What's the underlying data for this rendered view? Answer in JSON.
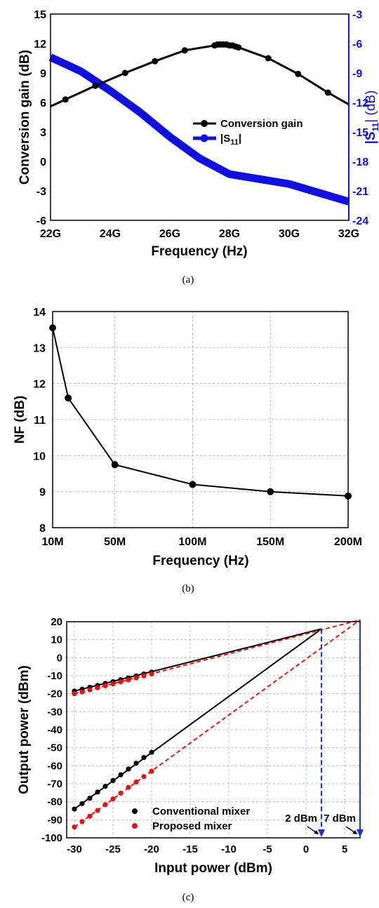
{
  "chart_data": [
    {
      "type": "line",
      "caption": "(a)",
      "xlabel": "Frequency (Hz)",
      "ylabel": "Conversion gain (dB)",
      "y2label_pre": "|S",
      "y2label_sub": "11",
      "y2label_post": "| (dB)",
      "x_ticks": [
        "22G",
        "24G",
        "26G",
        "28G",
        "30G",
        "32G"
      ],
      "xlim": [
        22,
        32
      ],
      "ylim": [
        -6,
        15
      ],
      "y_ticks": [
        "-6",
        "-3",
        "0",
        "3",
        "6",
        "9",
        "12",
        "15"
      ],
      "y2lim": [
        -24,
        -3
      ],
      "y2_ticks": [
        "-24",
        "-21",
        "-18",
        "-15",
        "-12",
        "-9",
        "-6",
        "-3"
      ],
      "legend": [
        "Conversion gain",
        "|S11|"
      ],
      "legend_s11_pre": "|S",
      "legend_s11_sub": "11",
      "legend_s11_post": "|",
      "colors": {
        "gain": "#000000",
        "s11": "#1010dd"
      },
      "series": [
        {
          "name": "Conversion gain",
          "axis": "left",
          "x": [
            22,
            22.5,
            23.5,
            24.5,
            25.5,
            26.5,
            27.5,
            27.6,
            27.7,
            27.8,
            27.9,
            28.0,
            28.1,
            28.2,
            28.3,
            29.3,
            30.3,
            31.3,
            32
          ],
          "y": [
            5.6,
            6.3,
            7.7,
            9.0,
            10.2,
            11.3,
            11.8,
            11.9,
            11.9,
            11.9,
            11.9,
            11.8,
            11.8,
            11.7,
            11.6,
            10.5,
            8.9,
            7.0,
            5.8
          ]
        },
        {
          "name": "|S11|",
          "axis": "right",
          "x": [
            22,
            23,
            24,
            25,
            26,
            27,
            28,
            29,
            30,
            31,
            32
          ],
          "y": [
            -7.4,
            -8.8,
            -10.8,
            -13.0,
            -15.5,
            -17.7,
            -19.3,
            -19.8,
            -20.3,
            -21.2,
            -22.1
          ]
        }
      ]
    },
    {
      "type": "line",
      "caption": "(b)",
      "xlabel": "Frequency (Hz)",
      "ylabel": "NF (dB)",
      "x_ticks": [
        "10M",
        "50M",
        "100M",
        "150M",
        "200M"
      ],
      "x_tick_values": [
        10,
        50,
        100,
        150,
        200
      ],
      "xlim": [
        10,
        200
      ],
      "ylim": [
        8,
        14
      ],
      "y_ticks": [
        "8",
        "9",
        "10",
        "11",
        "12",
        "13",
        "14"
      ],
      "series": [
        {
          "name": "NF",
          "x": [
            10,
            20,
            50,
            100,
            150,
            200
          ],
          "y": [
            13.55,
            11.6,
            9.75,
            9.2,
            9.0,
            8.88
          ]
        }
      ]
    },
    {
      "type": "scatter",
      "caption": "(c)",
      "xlabel": "Input power (dBm)",
      "ylabel": "Output power (dBm)",
      "x_ticks": [
        "-30",
        "-25",
        "-20",
        "-15",
        "-10",
        "-5",
        "0",
        "5"
      ],
      "xlim": [
        -31,
        7
      ],
      "ylim": [
        -100,
        20
      ],
      "y_ticks": [
        "-100",
        "-90",
        "-80",
        "-70",
        "-60",
        "-50",
        "-40",
        "-30",
        "-20",
        "-10",
        "0",
        "10",
        "20"
      ],
      "legend": [
        "Conventional mixer",
        "Proposed mixer"
      ],
      "colors": {
        "conventional": "#000000",
        "proposed": "#e11414",
        "marker": "#1530e0"
      },
      "annotations": [
        {
          "text": "2 dBm",
          "x": 2
        },
        {
          "text": "7 dBm",
          "x": 7
        }
      ],
      "series": [
        {
          "name": "Conventional mixer fundamental",
          "x": [
            -30,
            -29,
            -28,
            -27,
            -26,
            -25,
            -24,
            -23,
            -22,
            -21,
            -20
          ],
          "y": [
            -18.5,
            -17.5,
            -16.4,
            -15.4,
            -14.3,
            -13.3,
            -12.2,
            -11.2,
            -10.1,
            -9.0,
            -8.0
          ],
          "fit": [
            [
              -30,
              -18.5
            ],
            [
              2,
              16
            ]
          ]
        },
        {
          "name": "Conventional mixer IM3",
          "x": [
            -30,
            -29,
            -28,
            -27,
            -26,
            -25,
            -24,
            -23,
            -22,
            -21,
            -20
          ],
          "y": [
            -84,
            -81,
            -78,
            -74.6,
            -71.4,
            -68.2,
            -65,
            -61.8,
            -58.6,
            -55.4,
            -52.5
          ],
          "fit": [
            [
              -30,
              -84
            ],
            [
              2,
              16
            ]
          ]
        },
        {
          "name": "Proposed mixer fundamental",
          "x": [
            -30,
            -29,
            -28,
            -27,
            -26,
            -25,
            -24,
            -23,
            -22,
            -21,
            -20
          ],
          "y": [
            -20,
            -19,
            -17.8,
            -16.7,
            -15.6,
            -14.5,
            -13.4,
            -12.3,
            -11.2,
            -10.1,
            -9.0
          ],
          "fit": [
            [
              -30,
              -20
            ],
            [
              7,
              21
            ]
          ]
        },
        {
          "name": "Proposed mixer IM3",
          "x": [
            -30,
            -29,
            -28,
            -27,
            -26,
            -25,
            -24,
            -23,
            -22,
            -21,
            -20
          ],
          "y": [
            -94,
            -91,
            -88,
            -84.8,
            -81.6,
            -78.4,
            -75.2,
            -72,
            -69,
            -66,
            -63
          ],
          "fit": [
            [
              -30,
              -94
            ],
            [
              7,
              21
            ]
          ]
        }
      ]
    }
  ]
}
